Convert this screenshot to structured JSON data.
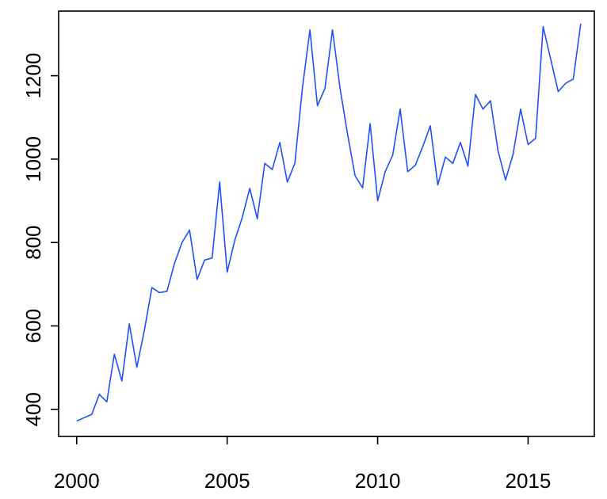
{
  "chart_data": {
    "type": "line",
    "title": "",
    "xlabel": "",
    "ylabel": "",
    "grid": false,
    "xlim": [
      1999.4,
      2017.2
    ],
    "ylim": [
      335,
      1355
    ],
    "x_ticks": [
      2000,
      2005,
      2010,
      2015
    ],
    "x_tick_labels": [
      "2000",
      "2005",
      "2010",
      "2015"
    ],
    "y_ticks": [
      400,
      600,
      800,
      1000,
      1200
    ],
    "y_tick_labels": [
      "400",
      "600",
      "800",
      "1000",
      "1200"
    ],
    "series": [
      {
        "color": "#1f4fff",
        "x": [
          2000.0,
          2000.25,
          2000.5,
          2000.75,
          2001.0,
          2001.25,
          2001.5,
          2001.75,
          2002.0,
          2002.25,
          2002.5,
          2002.75,
          2003.0,
          2003.25,
          2003.5,
          2003.75,
          2004.0,
          2004.25,
          2004.5,
          2004.75,
          2005.0,
          2005.25,
          2005.5,
          2005.75,
          2006.0,
          2006.25,
          2006.5,
          2006.75,
          2007.0,
          2007.25,
          2007.5,
          2007.75,
          2008.0,
          2008.25,
          2008.5,
          2008.75,
          2009.0,
          2009.25,
          2009.5,
          2009.75,
          2010.0,
          2010.25,
          2010.5,
          2010.75,
          2011.0,
          2011.25,
          2011.5,
          2011.75,
          2012.0,
          2012.25,
          2012.5,
          2012.75,
          2013.0,
          2013.25,
          2013.5,
          2013.75,
          2014.0,
          2014.25,
          2014.5,
          2014.75,
          2015.0,
          2015.25,
          2015.5,
          2015.75,
          2016.0,
          2016.25,
          2016.5,
          2016.75
        ],
        "y": [
          372,
          380,
          388,
          436,
          418,
          532,
          468,
          605,
          501,
          590,
          692,
          680,
          683,
          750,
          800,
          830,
          711,
          758,
          763,
          945,
          729,
          805,
          860,
          930,
          857,
          990,
          975,
          1040,
          945,
          990,
          1170,
          1310,
          1128,
          1170,
          1310,
          1170,
          1060,
          960,
          931,
          1085,
          900,
          970,
          1010,
          1120,
          970,
          985,
          1030,
          1080,
          938,
          1005,
          990,
          1040,
          983,
          1155,
          1120,
          1140,
          1020,
          950,
          1012,
          1120,
          1035,
          1050,
          1318,
          1240,
          1162,
          1182,
          1192,
          1325
        ]
      }
    ]
  }
}
